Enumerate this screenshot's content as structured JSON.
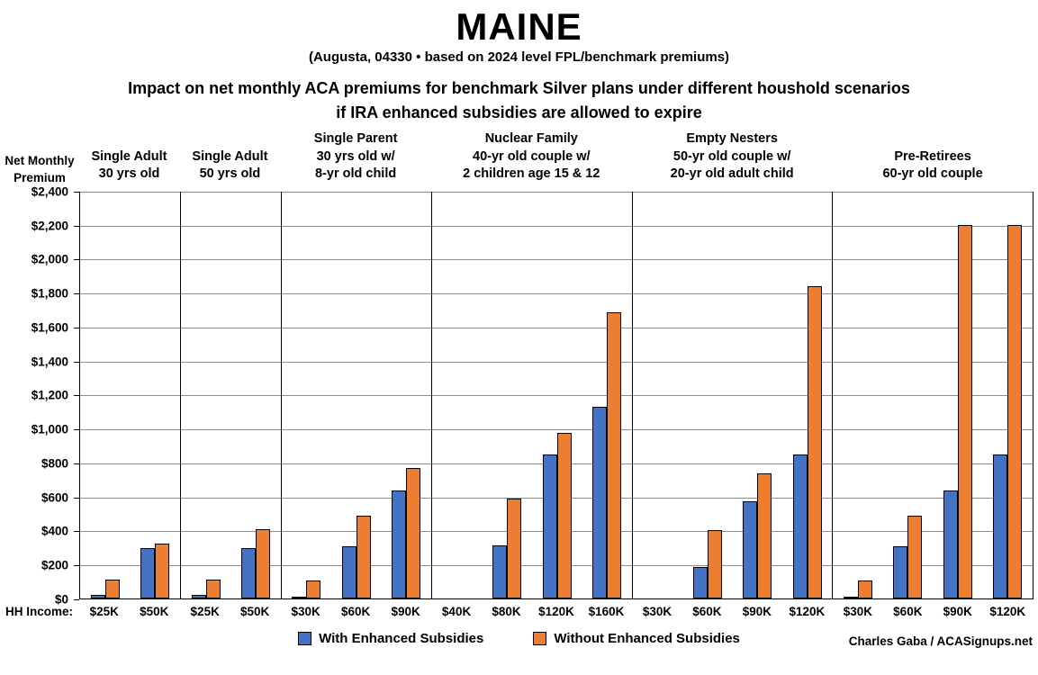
{
  "header": {
    "title": "MAINE",
    "subtitle": "(Augusta, 04330 • based on 2024 level FPL/benchmark premiums)",
    "description_line1": "Impact on net monthly ACA premiums for benchmark Silver plans under different houshold scenarios",
    "description_line2": "if IRA enhanced subsidies are allowed to expire"
  },
  "chart_data": {
    "type": "bar",
    "title": "MAINE",
    "y_axis": {
      "label": "Net Monthly Premium",
      "min": 0,
      "max": 2400,
      "step": 200,
      "tick_labels": [
        "$0",
        "$200",
        "$400",
        "$600",
        "$800",
        "$1,000",
        "$1,200",
        "$1,400",
        "$1,600",
        "$1,800",
        "$2,000",
        "$2,200",
        "$2,400"
      ]
    },
    "x_axis_label": "HH Income:",
    "colors": {
      "with_enhanced": "#4472C4",
      "without_enhanced": "#ED7D31"
    },
    "series_names": [
      "With Enhanced Subsidies",
      "Without Enhanced Subsidies"
    ],
    "groups": [
      {
        "label_lines": [
          "Single Adult",
          "30 yrs old"
        ],
        "categories": [
          "$25K",
          "$50K"
        ],
        "with_enhanced": [
          20,
          295
        ],
        "without_enhanced": [
          110,
          325
        ]
      },
      {
        "label_lines": [
          "Single Adult",
          "50 yrs old"
        ],
        "categories": [
          "$25K",
          "$50K"
        ],
        "with_enhanced": [
          20,
          295
        ],
        "without_enhanced": [
          110,
          410
        ]
      },
      {
        "label_lines": [
          "Single Parent",
          "30 yrs old w/",
          "8-yr old child"
        ],
        "categories": [
          "$30K",
          "$60K",
          "$90K"
        ],
        "with_enhanced": [
          10,
          305,
          635
        ],
        "without_enhanced": [
          105,
          490,
          770
        ]
      },
      {
        "label_lines": [
          "Nuclear Family",
          "40-yr old couple w/",
          "2 children age 15 & 12"
        ],
        "categories": [
          "$40K",
          "$80K",
          "$120K",
          "$160K"
        ],
        "with_enhanced": [
          0,
          310,
          850,
          1130
        ],
        "without_enhanced": [
          0,
          590,
          975,
          1685
        ]
      },
      {
        "label_lines": [
          "Empty Nesters",
          "50-yr old couple w/",
          "20-yr old adult child"
        ],
        "categories": [
          "$30K",
          "$60K",
          "$90K",
          "$120K"
        ],
        "with_enhanced": [
          0,
          185,
          570,
          850
        ],
        "without_enhanced": [
          0,
          400,
          735,
          1840
        ]
      },
      {
        "label_lines": [
          "Pre-Retirees",
          "60-yr old couple"
        ],
        "categories": [
          "$30K",
          "$60K",
          "$90K",
          "$120K"
        ],
        "with_enhanced": [
          10,
          305,
          635,
          850
        ],
        "without_enhanced": [
          105,
          490,
          2200,
          2200
        ]
      }
    ],
    "legend": [
      {
        "label": "With Enhanced Subsidies",
        "color": "#4472C4"
      },
      {
        "label": "Without Enhanced Subsidies",
        "color": "#ED7D31"
      }
    ],
    "credit": "Charles Gaba / ACASignups.net"
  }
}
